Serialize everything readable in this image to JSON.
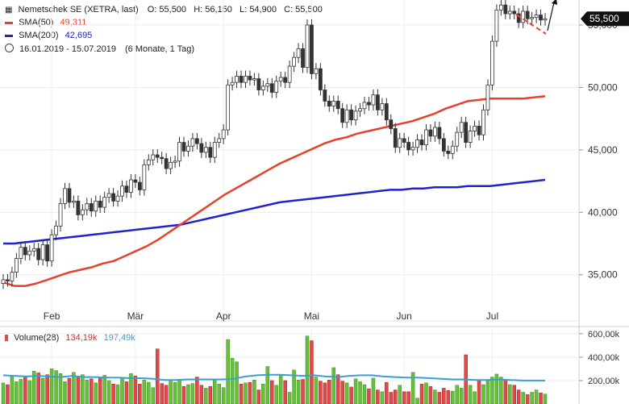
{
  "header": {
    "title": "Nemetschek SE (XETRA, last)",
    "ohlc": "O: 55,500   H: 56,150   L: 54,900   C: 55,500",
    "sma50_label": "SMA(50)",
    "sma50_value": "49,311",
    "sma200_label": "SMA(200)",
    "sma200_value": "42,695",
    "range": "16.01.2019 - 15.07.2019",
    "range_note": "(6 Monate, 1 Tag)",
    "volume_label": "Volume(28)",
    "volume_value1": "134,19k",
    "volume_value2": "197,49k"
  },
  "colors": {
    "up": "#2e8b2e",
    "down": "#d32f2f",
    "sma50": "#e8402a",
    "sma200": "#2222cc",
    "vol_up": "#66c03a",
    "vol_down": "#e04a4a",
    "vol_avg": "#39a0d0"
  },
  "chart_data": {
    "type": "candlestick",
    "price_axis": {
      "ylim": [
        31.3,
        57.0
      ],
      "ticks": [
        35,
        40,
        45,
        50,
        55
      ],
      "tick_labels": [
        "35,000",
        "40,000",
        "45,000",
        "50,000",
        "55,000"
      ]
    },
    "last_price_label": "55,500",
    "x_labels": [
      "Feb",
      "Mär",
      "Apr",
      "Mai",
      "Jun",
      "Jul"
    ],
    "volume_axis": {
      "ylim": [
        0,
        640
      ],
      "ticks": [
        200,
        400,
        600
      ],
      "tick_labels": [
        "200,00k",
        "400,00k",
        "600,00k"
      ]
    },
    "closes": [
      34.6,
      34.5,
      35.2,
      36.3,
      37.2,
      36.6,
      36.9,
      37.1,
      36.2,
      37.4,
      36.1,
      38.2,
      38.9,
      40.7,
      41.9,
      40.8,
      40.9,
      39.8,
      40.2,
      40.7,
      40.1,
      40.9,
      40.4,
      41.2,
      41.5,
      40.9,
      41.3,
      42.1,
      41.6,
      42.6,
      42.4,
      41.8,
      43.8,
      44.2,
      44.6,
      44.4,
      44.3,
      43.5,
      44.0,
      44.1,
      45.6,
      44.9,
      45.3,
      45.9,
      45.5,
      44.8,
      45.2,
      44.4,
      45.6,
      45.9,
      46.6,
      50.2,
      50.4,
      50.9,
      50.4,
      50.9,
      50.6,
      50.7,
      49.8,
      50.1,
      50.3,
      49.6,
      50.5,
      50.8,
      50.4,
      51.7,
      52.4,
      53.1,
      51.6,
      55.0,
      51.1,
      51.5,
      49.8,
      48.9,
      48.5,
      48.9,
      48.3,
      47.2,
      48.2,
      47.4,
      48.1,
      48.3,
      48.8,
      48.6,
      49.4,
      48.2,
      48.7,
      47.4,
      46.7,
      45.2,
      45.9,
      45.6,
      45.0,
      45.2,
      45.8,
      45.4,
      46.6,
      46.1,
      46.8,
      45.9,
      44.9,
      44.7,
      45.3,
      46.4,
      47.2,
      45.6,
      46.5,
      46.9,
      46.2,
      48.2,
      50.2,
      53.7,
      56.2,
      56.6,
      55.9,
      56.1,
      55.9,
      55.2,
      56.1,
      55.5,
      55.6,
      55.8,
      55.4,
      55.5
    ],
    "sma50": [
      34.4,
      34.1,
      34.1,
      34.3,
      34.6,
      34.9,
      35.2,
      35.4,
      35.6,
      35.9,
      36.1,
      36.5,
      36.9,
      37.3,
      37.8,
      38.4,
      39.0,
      39.6,
      40.2,
      40.8,
      41.4,
      41.9,
      42.4,
      42.9,
      43.4,
      43.9,
      44.3,
      44.7,
      45.1,
      45.5,
      45.8,
      46.0,
      46.3,
      46.5,
      46.7,
      46.9,
      47.1,
      47.3,
      47.6,
      47.9,
      48.3,
      48.6,
      48.9,
      49.0,
      49.1,
      49.1,
      49.1,
      49.1,
      49.2,
      49.3
    ],
    "sma200": [
      37.5,
      37.5,
      37.6,
      37.7,
      37.8,
      37.9,
      38.0,
      38.1,
      38.2,
      38.3,
      38.4,
      38.5,
      38.6,
      38.7,
      38.8,
      38.9,
      39.0,
      39.2,
      39.4,
      39.6,
      39.8,
      40.0,
      40.2,
      40.4,
      40.6,
      40.8,
      40.9,
      41.0,
      41.1,
      41.2,
      41.3,
      41.4,
      41.5,
      41.6,
      41.7,
      41.8,
      41.8,
      41.9,
      41.9,
      42.0,
      42.0,
      42.0,
      42.1,
      42.1,
      42.1,
      42.2,
      42.3,
      42.4,
      42.5,
      42.6
    ],
    "volume": [
      180,
      165,
      235,
      190,
      210,
      240,
      200,
      280,
      265,
      220,
      250,
      300,
      285,
      260,
      190,
      220,
      270,
      230,
      250,
      205,
      215,
      180,
      230,
      245,
      200,
      170,
      165,
      220,
      190,
      260,
      240,
      170,
      205,
      185,
      140,
      470,
      175,
      160,
      195,
      185,
      210,
      150,
      165,
      175,
      230,
      160,
      135,
      150,
      200,
      170,
      140,
      550,
      390,
      360,
      170,
      180,
      185,
      205,
      120,
      170,
      320,
      200,
      160,
      250,
      200,
      100,
      290,
      205,
      210,
      580,
      540,
      230,
      195,
      180,
      205,
      310,
      250,
      195,
      180,
      145,
      215,
      190,
      165,
      130,
      220,
      120,
      105,
      185,
      100,
      120,
      160,
      105,
      105,
      270,
      50,
      170,
      180,
      150,
      120,
      100,
      135,
      115,
      110,
      160,
      135,
      420,
      160,
      105,
      205,
      165,
      200,
      230,
      255,
      230,
      210,
      165,
      160,
      120,
      100,
      80,
      100,
      120,
      95,
      85
    ],
    "volume_avg": [
      245,
      240,
      235,
      240,
      235,
      230,
      240,
      230,
      230,
      225,
      225,
      220,
      220,
      215,
      205,
      205,
      210,
      210,
      210,
      210,
      215,
      235,
      245,
      250,
      250,
      245,
      240,
      245,
      235,
      230,
      240,
      245,
      245,
      235,
      230,
      225,
      225,
      220,
      215,
      210,
      210,
      205,
      205,
      210,
      205,
      200,
      200,
      200
    ],
    "markers": [
      {
        "label": "",
        "type": "dashed-trend"
      },
      {
        "label": "",
        "type": "arrow-up"
      }
    ]
  }
}
